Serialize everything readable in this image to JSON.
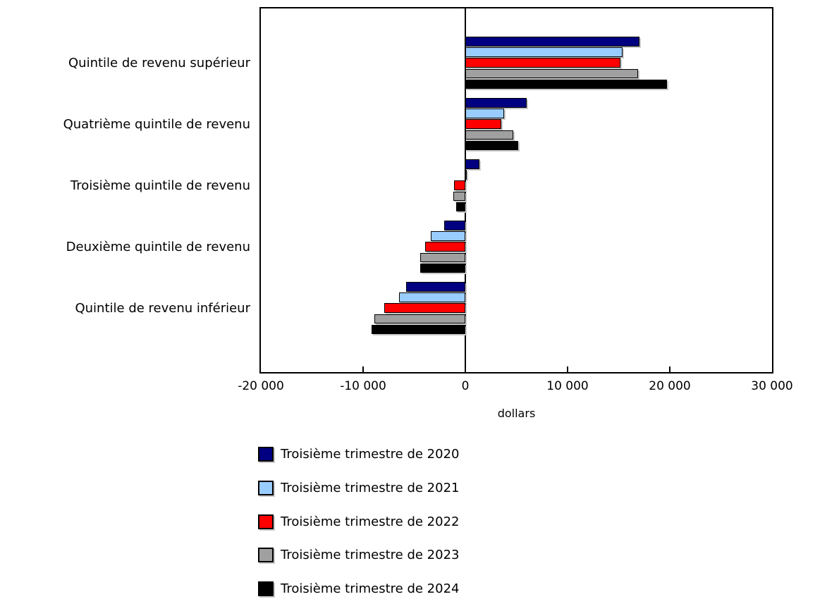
{
  "chart_data": {
    "type": "bar",
    "orientation": "horizontal",
    "title": "",
    "xlabel": "dollars",
    "ylabel": "",
    "xlim": [
      -20000,
      30000
    ],
    "grid": false,
    "legend_position": "bottom-left",
    "x_ticks": [
      -20000,
      -10000,
      0,
      10000,
      20000,
      30000
    ],
    "x_tick_labels": [
      "-20 000",
      "-10 000",
      "0",
      "10 000",
      "20 000",
      "30 000"
    ],
    "categories": [
      "Quintile de revenu supérieur",
      "Quatrième quintile de revenu",
      "Troisième quintile de revenu",
      "Deuxième quintile de revenu",
      "Quintile de revenu inférieur"
    ],
    "series": [
      {
        "name": "Troisième trimestre de 2020",
        "color": "#000080",
        "values": [
          17000,
          6000,
          1400,
          -2100,
          -5800
        ]
      },
      {
        "name": "Troisième trimestre de 2021",
        "color": "#99CCFF",
        "values": [
          15400,
          3800,
          100,
          -3400,
          -6500
        ]
      },
      {
        "name": "Troisième trimestre de 2022",
        "color": "#FF0000",
        "values": [
          15200,
          3500,
          -1100,
          -3900,
          -7900
        ]
      },
      {
        "name": "Troisième trimestre de 2023",
        "color": "#A0A0A0",
        "values": [
          16900,
          4700,
          -1200,
          -4400,
          -8900
        ]
      },
      {
        "name": "Troisième trimestre de 2024",
        "color": "#000000",
        "values": [
          19700,
          5200,
          -900,
          -4400,
          -9200
        ]
      }
    ]
  },
  "colors": {
    "axis": "#000000",
    "bar_border": "#000000",
    "shadow": "#c9c9c9"
  }
}
